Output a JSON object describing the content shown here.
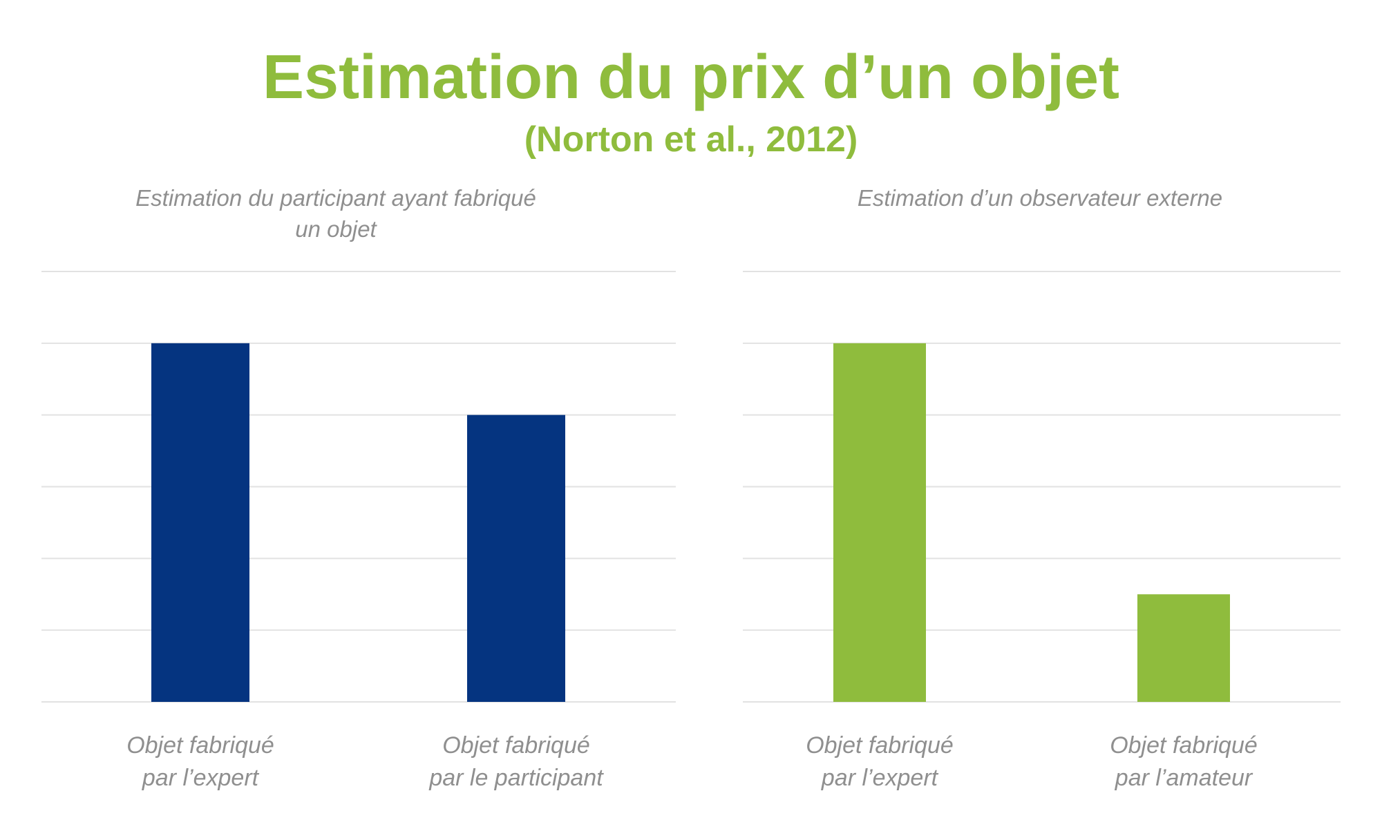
{
  "title": "Estimation du prix d’un objet",
  "subtitle": "(Norton et al., 2012)",
  "chart_data": [
    {
      "type": "bar",
      "title_lines": [
        "Estimation du participant ayant fabriqué",
        "un objet"
      ],
      "categories": [
        [
          "Objet fabriqué",
          "par l’expert"
        ],
        [
          "Objet fabriqué",
          "par le participant"
        ]
      ],
      "values": [
        5,
        4
      ],
      "ylim": [
        0,
        6
      ],
      "grid": true,
      "color": "#053480"
    },
    {
      "type": "bar",
      "title_lines": [
        "Estimation d’un observateur externe"
      ],
      "categories": [
        [
          "Objet fabriqué",
          "par l’expert"
        ],
        [
          "Objet fabriqué",
          "par l’amateur"
        ]
      ],
      "values": [
        5,
        1.5
      ],
      "ylim": [
        0,
        6
      ],
      "grid": true,
      "color": "#8fbc3d"
    }
  ]
}
